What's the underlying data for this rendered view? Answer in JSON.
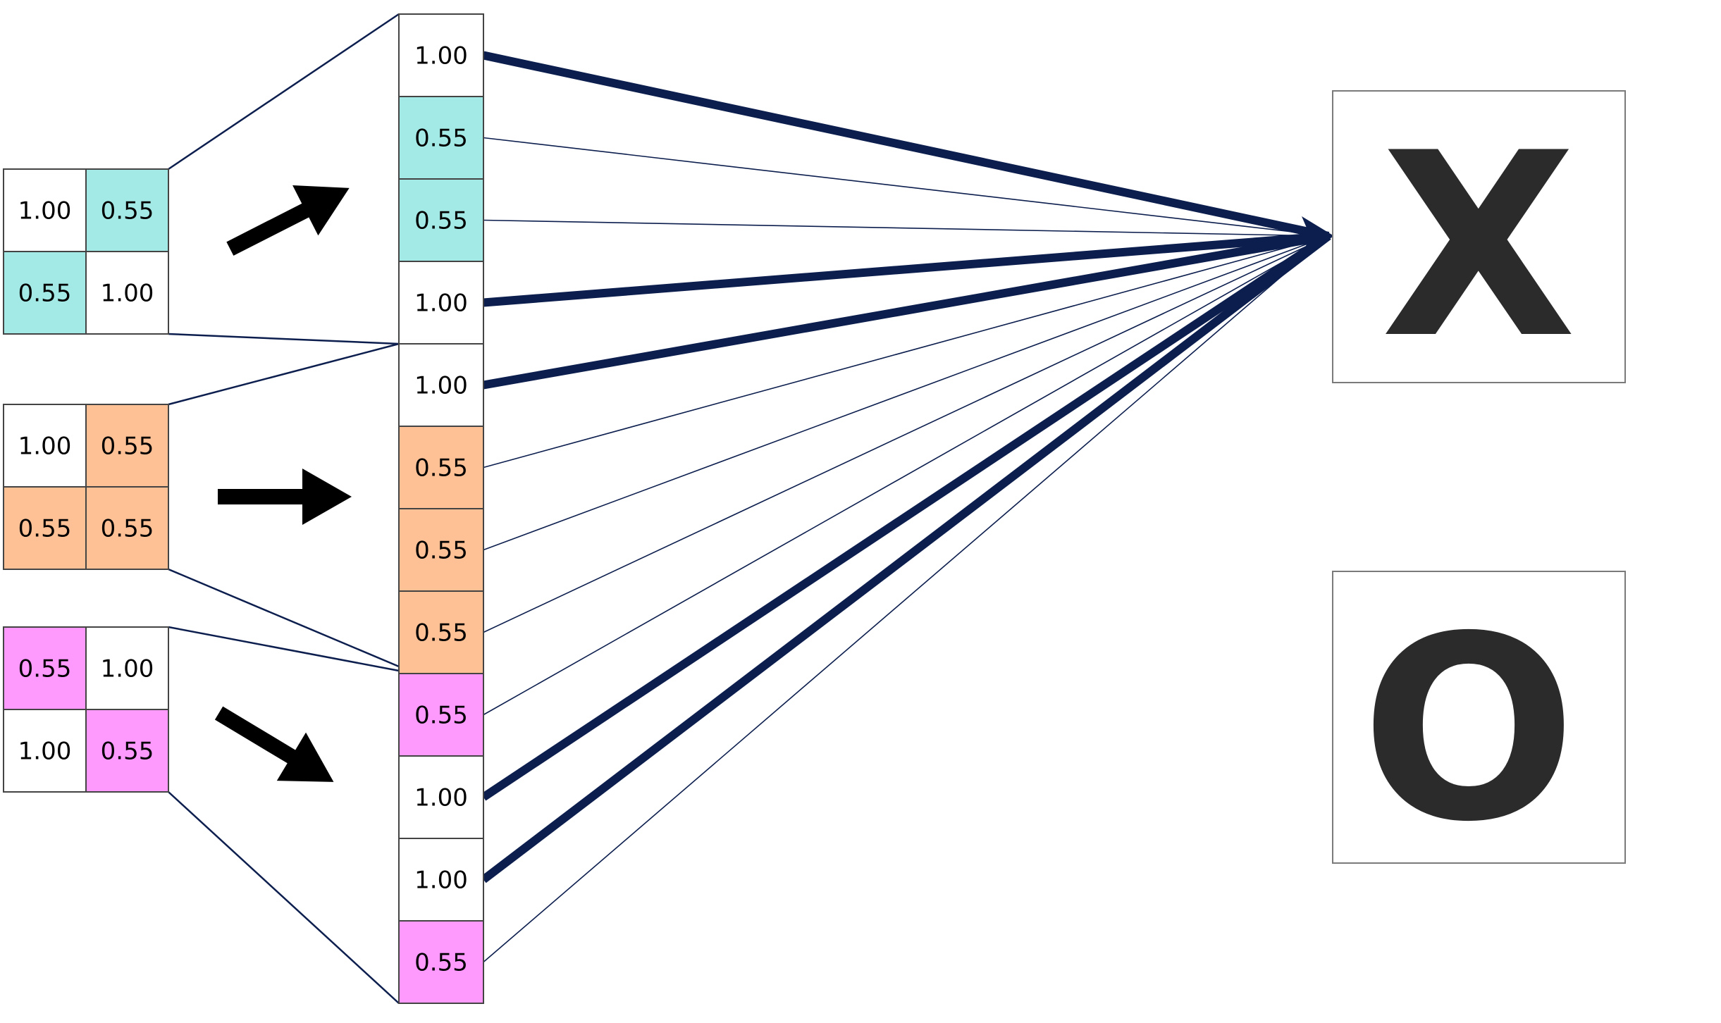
{
  "colors": {
    "cyan": "#a3e9e5",
    "orange": "#fec095",
    "pink": "#fe99fe",
    "white": "#ffffff",
    "connection": "#0c1e4e",
    "arrow": "#000000",
    "letter": "#2b2b2b"
  },
  "pools": [
    {
      "cells": [
        {
          "value": "1.00",
          "color": "white"
        },
        {
          "value": "0.55",
          "color": "cyan"
        },
        {
          "value": "0.55",
          "color": "cyan"
        },
        {
          "value": "1.00",
          "color": "white"
        }
      ],
      "arrow_direction": "up-right"
    },
    {
      "cells": [
        {
          "value": "1.00",
          "color": "white"
        },
        {
          "value": "0.55",
          "color": "orange"
        },
        {
          "value": "0.55",
          "color": "orange"
        },
        {
          "value": "0.55",
          "color": "orange"
        }
      ],
      "arrow_direction": "right"
    },
    {
      "cells": [
        {
          "value": "0.55",
          "color": "pink"
        },
        {
          "value": "1.00",
          "color": "white"
        },
        {
          "value": "1.00",
          "color": "white"
        },
        {
          "value": "0.55",
          "color": "pink"
        }
      ],
      "arrow_direction": "down-right"
    }
  ],
  "flattened": [
    {
      "value": "1.00",
      "color": "white",
      "strong": true
    },
    {
      "value": "0.55",
      "color": "cyan",
      "strong": false
    },
    {
      "value": "0.55",
      "color": "cyan",
      "strong": false
    },
    {
      "value": "1.00",
      "color": "white",
      "strong": true
    },
    {
      "value": "1.00",
      "color": "white",
      "strong": true
    },
    {
      "value": "0.55",
      "color": "orange",
      "strong": false
    },
    {
      "value": "0.55",
      "color": "orange",
      "strong": false
    },
    {
      "value": "0.55",
      "color": "orange",
      "strong": false
    },
    {
      "value": "0.55",
      "color": "pink",
      "strong": false
    },
    {
      "value": "1.00",
      "color": "white",
      "strong": true
    },
    {
      "value": "1.00",
      "color": "white",
      "strong": true
    },
    {
      "value": "0.55",
      "color": "pink",
      "strong": false
    }
  ],
  "outputs": [
    {
      "label": "X"
    },
    {
      "label": "O"
    }
  ]
}
